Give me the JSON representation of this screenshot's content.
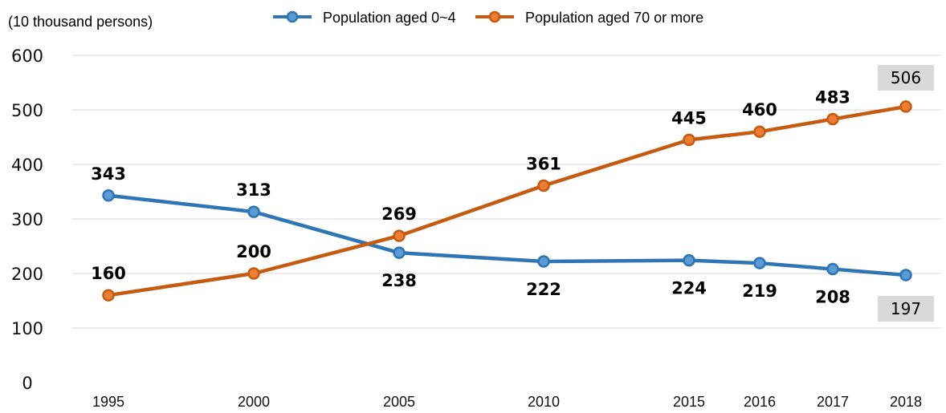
{
  "chart_data": {
    "type": "line",
    "unit_label": "(10 thousand persons)",
    "categories": [
      "1995",
      "2000",
      "2005",
      "2010",
      "2015",
      "2016",
      "2017",
      "2018"
    ],
    "ylim": [
      0,
      600
    ],
    "yticks": [
      "0",
      "100",
      "200",
      "300",
      "400",
      "500",
      "600"
    ],
    "grid": true,
    "legend_position": "top-center",
    "series": [
      {
        "name": "Population aged 0~4",
        "color": "#2E75B6",
        "values": [
          343,
          313,
          238,
          222,
          224,
          219,
          208,
          197
        ],
        "label_pos": [
          "above",
          "above",
          "below",
          "below",
          "below",
          "below",
          "below",
          "below"
        ]
      },
      {
        "name": "Population aged 70 or more",
        "color": "#C55A11",
        "values": [
          160,
          200,
          269,
          361,
          445,
          460,
          483,
          506
        ],
        "label_pos": [
          "above",
          "above",
          "above",
          "above",
          "above",
          "above",
          "above",
          "above"
        ]
      }
    ],
    "highlighted_last_labels": true
  }
}
